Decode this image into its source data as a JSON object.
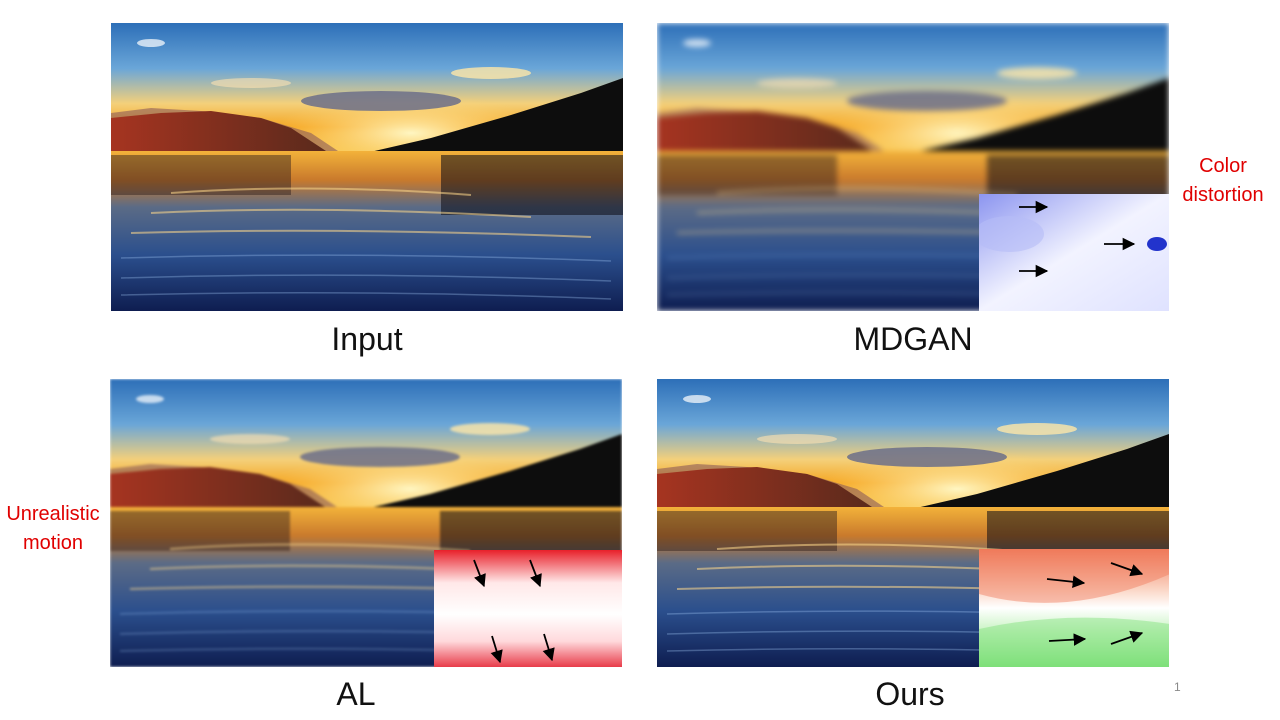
{
  "panels": {
    "input": {
      "caption": "Input"
    },
    "mdgan": {
      "caption": "MDGAN",
      "annotation": [
        "Color",
        "distortion"
      ]
    },
    "al": {
      "caption": "AL",
      "annotation": [
        "Unrealistic",
        "motion"
      ]
    },
    "ours": {
      "caption": "Ours"
    }
  },
  "slide_number": "1",
  "colors": {
    "annotation": "#e00000",
    "mdgan_flow": "#8c95f0",
    "al_flow": "#e8202a",
    "ours_flow_top": "#f07a5a",
    "ours_flow_bottom": "#7ee07a"
  },
  "icons": [
    "arrow-icon"
  ]
}
